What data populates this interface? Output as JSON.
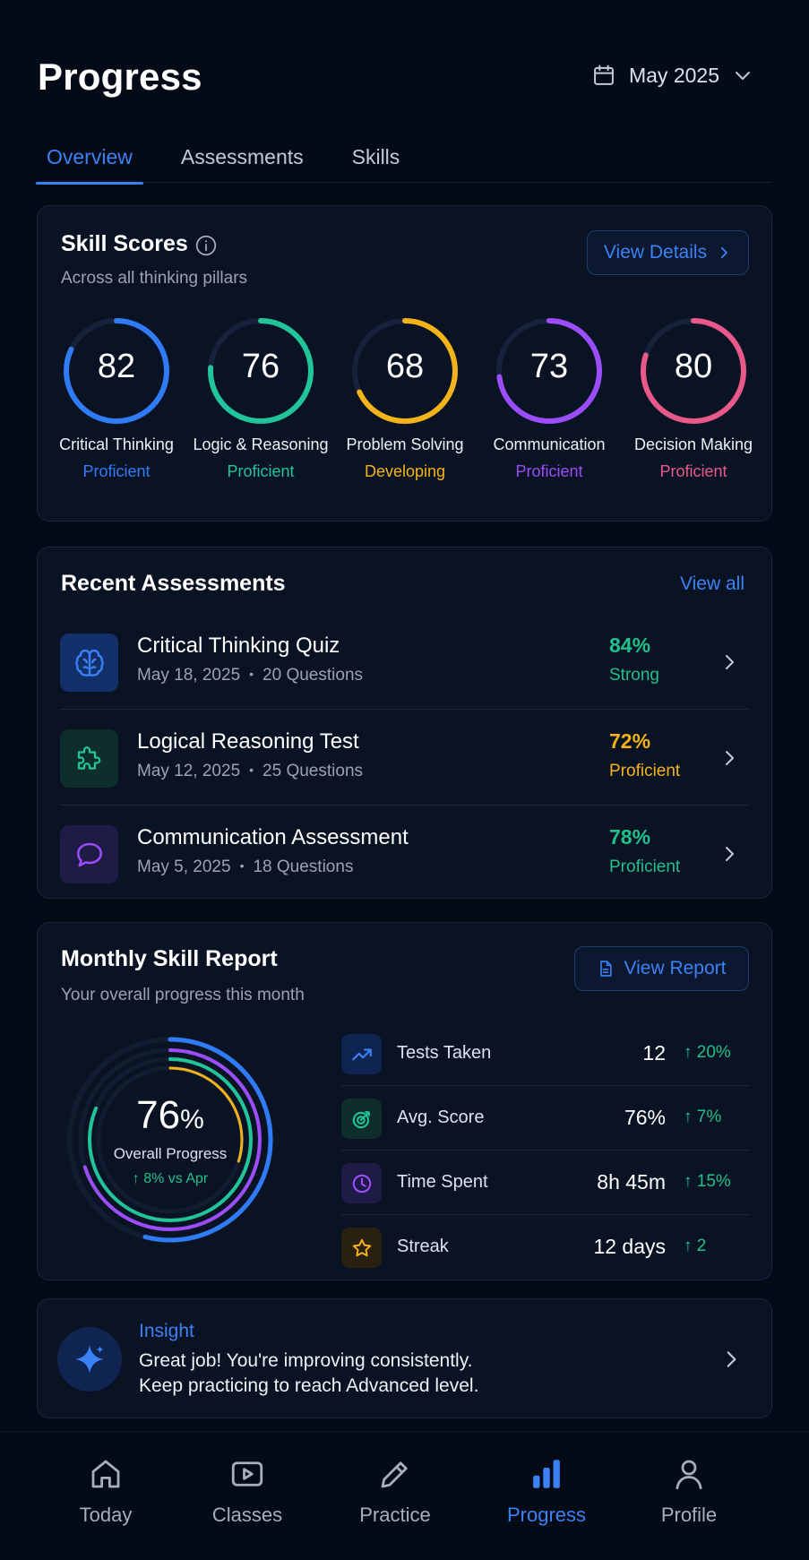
{
  "header": {
    "title": "Progress",
    "month": "May 2025"
  },
  "tabs": [
    {
      "label": "Overview",
      "active": true
    },
    {
      "label": "Assessments",
      "active": false
    },
    {
      "label": "Skills",
      "active": false
    }
  ],
  "skill_scores": {
    "title": "Skill Scores",
    "subtitle": "Across all thinking pillars",
    "button": "View Details",
    "skills": [
      {
        "score": "82",
        "name": "Critical Thinking",
        "level": "Proficient",
        "color": "#2f7cf6"
      },
      {
        "score": "76",
        "name": "Logic & Reasoning",
        "level": "Proficient",
        "color": "#22c49a"
      },
      {
        "score": "68",
        "name": "Problem Solving",
        "level": "Developing",
        "color": "#f5b31b"
      },
      {
        "score": "73",
        "name": "Communication",
        "level": "Proficient",
        "color": "#9b4dfa"
      },
      {
        "score": "80",
        "name": "Decision Making",
        "level": "Proficient",
        "color": "#e8598a"
      }
    ]
  },
  "recent_assessments": {
    "title": "Recent Assessments",
    "view_all": "View all",
    "items": [
      {
        "name": "Critical Thinking Quiz",
        "date": "May 18, 2025",
        "questions": "20 Questions",
        "percent": "84%",
        "level": "Strong",
        "color": "#22c08a",
        "icon": "brain-icon",
        "icon_bg": "#14306b"
      },
      {
        "name": "Logical Reasoning Test",
        "date": "May 12, 2025",
        "questions": "25 Questions",
        "percent": "72%",
        "level": "Proficient",
        "color": "#f5b31b",
        "icon": "puzzle-icon",
        "icon_bg": "#0d2e2b"
      },
      {
        "name": "Communication Assessment",
        "date": "May 5, 2025",
        "questions": "18 Questions",
        "percent": "78%",
        "level": "Proficient",
        "color": "#22c08a",
        "icon": "chat-icon",
        "icon_bg": "#1e1b47"
      }
    ]
  },
  "monthly_report": {
    "title": "Monthly Skill Report",
    "subtitle": "Your overall progress this month",
    "button": "View Report",
    "overall_value": "76",
    "overall_unit": "%",
    "overall_label": "Overall Progress",
    "overall_delta": "↑ 8% vs Apr",
    "stats": [
      {
        "label": "Tests Taken",
        "value": "12",
        "delta": "↑ 20%",
        "icon": "trend-up-icon"
      },
      {
        "label": "Avg. Score",
        "value": "76%",
        "delta": "↑ 7%",
        "icon": "target-icon"
      },
      {
        "label": "Time Spent",
        "value": "8h 45m",
        "delta": "↑ 15%",
        "icon": "clock-icon"
      },
      {
        "label": "Streak",
        "value": "12 days",
        "delta": "↑ 2",
        "icon": "star-icon"
      }
    ]
  },
  "insight": {
    "title": "Insight",
    "line1": "Great job! You're improving consistently.",
    "line2": "Keep practicing to reach Advanced level."
  },
  "nav": [
    {
      "label": "Today",
      "icon": "home-icon",
      "active": false
    },
    {
      "label": "Classes",
      "icon": "play-icon",
      "active": false
    },
    {
      "label": "Practice",
      "icon": "pencil-icon",
      "active": false
    },
    {
      "label": "Progress",
      "icon": "bar-chart-icon",
      "active": true
    },
    {
      "label": "Profile",
      "icon": "user-icon",
      "active": false
    }
  ]
}
